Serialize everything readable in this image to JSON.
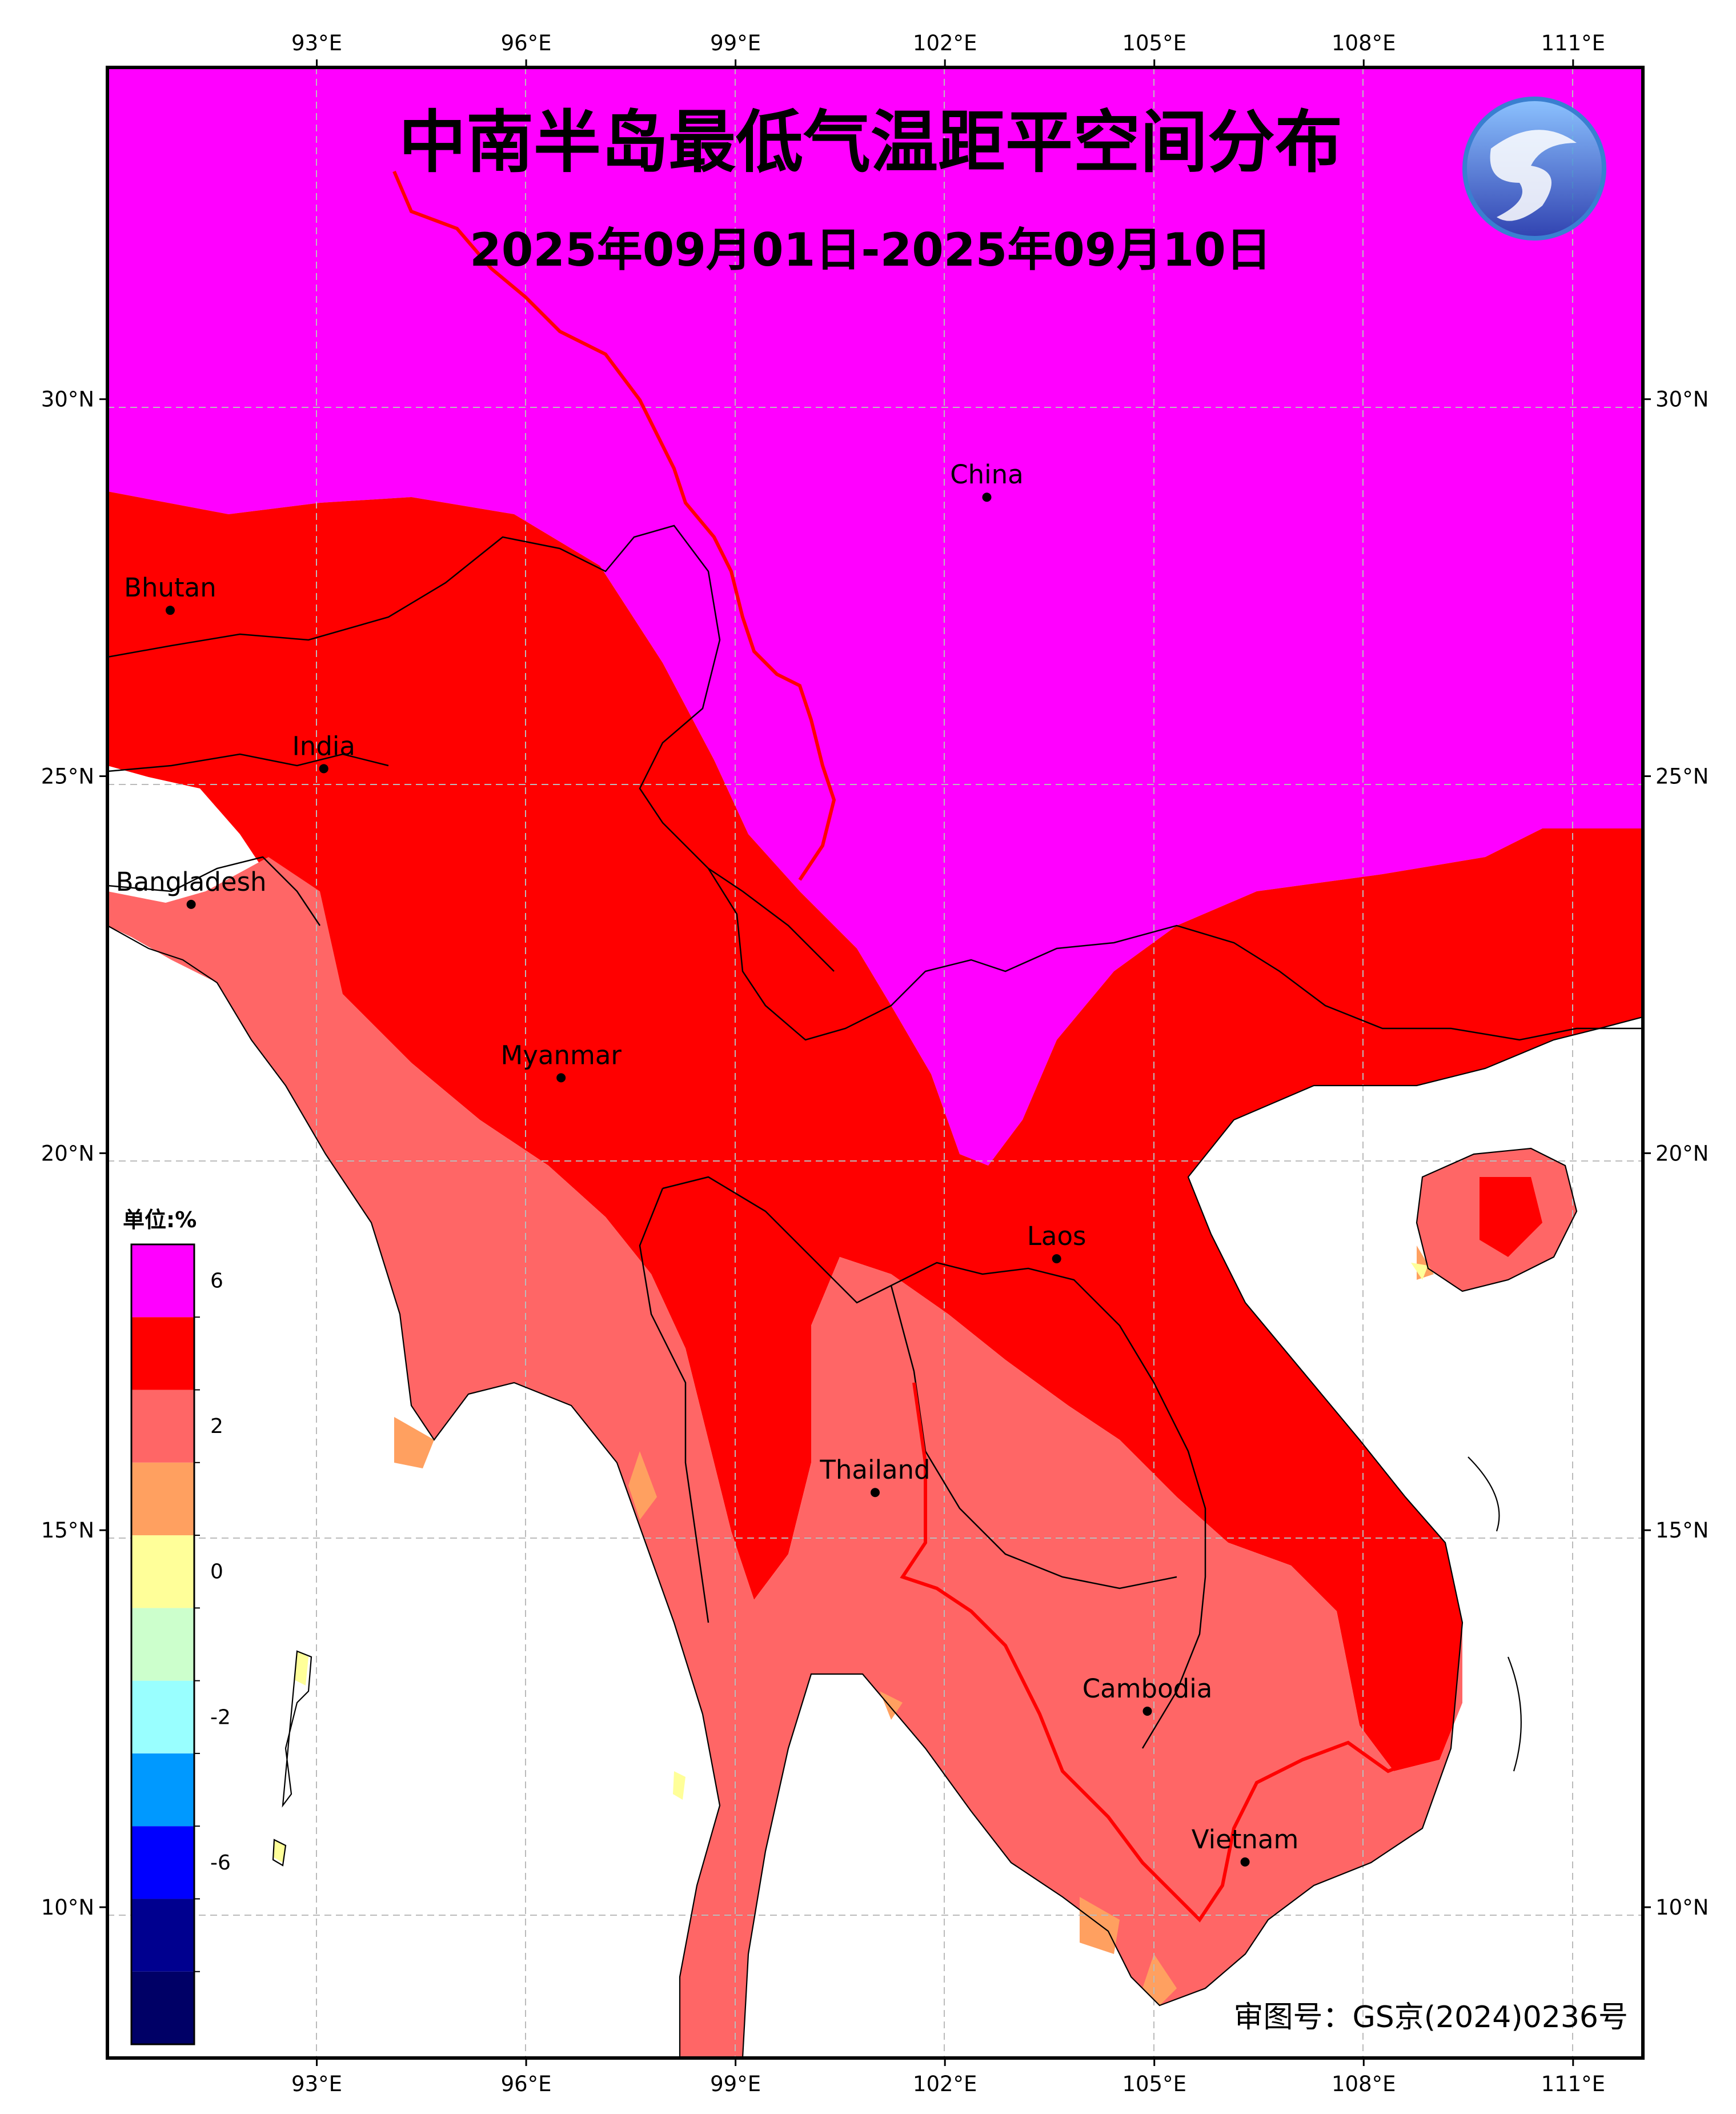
{
  "title": "中南半岛最低气温距平空间分布",
  "subtitle": "2025年09月01日-2025年09月10日",
  "review_number": "审图号：GS京(2024)0236号",
  "unit_label": "单位:%",
  "logo_icon": "dragon-emblem-icon",
  "axes": {
    "lon_ticks": [
      "93°E",
      "96°E",
      "99°E",
      "102°E",
      "105°E",
      "108°E",
      "111°E"
    ],
    "lon_values": [
      93,
      96,
      99,
      102,
      105,
      108,
      111
    ],
    "lat_ticks": [
      "30°N",
      "25°N",
      "20°N",
      "15°N",
      "10°N"
    ],
    "lat_values": [
      30,
      25,
      20,
      15,
      10
    ],
    "lon_range": [
      90,
      112
    ],
    "lat_range": [
      8,
      34.4
    ],
    "grid": true
  },
  "legend": {
    "colors": [
      "#000066",
      "#00008f",
      "#0000ff",
      "#0099ff",
      "#99ffff",
      "#ccffcc",
      "#ffff99",
      "#ffa060",
      "#ff6666",
      "#ff0000",
      "#ff00ff"
    ],
    "ticks": [
      {
        "label": "-6",
        "boundary": 3
      },
      {
        "label": "-2",
        "boundary": 5
      },
      {
        "label": "0",
        "boundary": 7
      },
      {
        "label": "2",
        "boundary": 9
      },
      {
        "label": "6",
        "boundary": 11
      }
    ]
  },
  "places": [
    {
      "name": "China",
      "lon": 102.6,
      "lat": 28.7
    },
    {
      "name": "Bhutan",
      "lon": 90.9,
      "lat": 27.2
    },
    {
      "name": "India",
      "lon": 93.1,
      "lat": 25.1
    },
    {
      "name": "Bangladesh",
      "lon": 91.2,
      "lat": 23.3
    },
    {
      "name": "Myanmar",
      "lon": 96.5,
      "lat": 21.0
    },
    {
      "name": "Laos",
      "lon": 103.6,
      "lat": 18.6
    },
    {
      "name": "Thailand",
      "lon": 101.0,
      "lat": 15.5
    },
    {
      "name": "Cambodia",
      "lon": 104.9,
      "lat": 12.6
    },
    {
      "name": "Vietnam",
      "lon": 106.3,
      "lat": 10.6
    }
  ]
}
